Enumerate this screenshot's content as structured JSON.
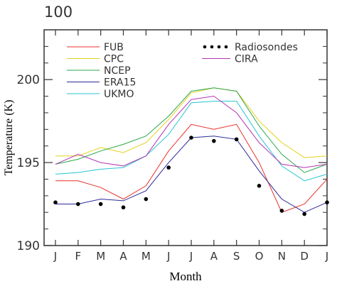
{
  "chart_data": {
    "type": "line",
    "title": "100",
    "xlabel": "Month",
    "ylabel": "Temperature (K)",
    "x": [
      "J",
      "F",
      "M",
      "A",
      "M",
      "J",
      "J",
      "A",
      "S",
      "O",
      "N",
      "D",
      "J"
    ],
    "ylim": [
      190,
      203
    ],
    "yticks": [
      190,
      195,
      200
    ],
    "grid": false,
    "legend_position": "top",
    "series": [
      {
        "name": "FUB",
        "color": "#e8322b",
        "style": "line",
        "values": [
          193.9,
          193.9,
          193.5,
          192.8,
          193.6,
          195.7,
          197.3,
          197.0,
          197.3,
          195.0,
          192.0,
          192.5,
          194.0
        ]
      },
      {
        "name": "CPC",
        "color": "#e3d21b",
        "style": "line",
        "values": [
          195.4,
          195.4,
          195.9,
          195.6,
          196.2,
          197.6,
          199.2,
          199.5,
          199.3,
          197.5,
          196.2,
          195.3,
          195.4
        ]
      },
      {
        "name": "NCEP",
        "color": "#2aa64a",
        "style": "line",
        "values": [
          194.9,
          195.2,
          195.7,
          196.1,
          196.6,
          197.8,
          199.3,
          199.5,
          199.3,
          197.2,
          195.5,
          194.4,
          194.9
        ]
      },
      {
        "name": "ERA15",
        "color": "#2c2a9a",
        "style": "line",
        "values": [
          192.5,
          192.5,
          192.8,
          192.7,
          193.3,
          195.0,
          196.5,
          196.6,
          196.4,
          194.5,
          192.8,
          192.0,
          192.6
        ]
      },
      {
        "name": "UKMO",
        "color": "#27c6d3",
        "style": "line",
        "values": [
          194.3,
          194.4,
          194.6,
          194.7,
          195.4,
          196.7,
          198.6,
          198.7,
          198.7,
          196.6,
          194.8,
          193.9,
          194.3
        ]
      },
      {
        "name": "Radiosondes",
        "color": "#000000",
        "style": "dots",
        "values": [
          192.6,
          192.5,
          192.5,
          192.3,
          192.8,
          194.7,
          196.5,
          196.3,
          196.4,
          193.6,
          192.1,
          191.9,
          192.6
        ]
      },
      {
        "name": "CIRA",
        "color": "#b336b3",
        "style": "line",
        "values": [
          194.9,
          195.5,
          195.0,
          194.8,
          195.4,
          197.3,
          198.8,
          199.0,
          198.0,
          196.2,
          194.9,
          194.7,
          194.9
        ]
      }
    ]
  }
}
